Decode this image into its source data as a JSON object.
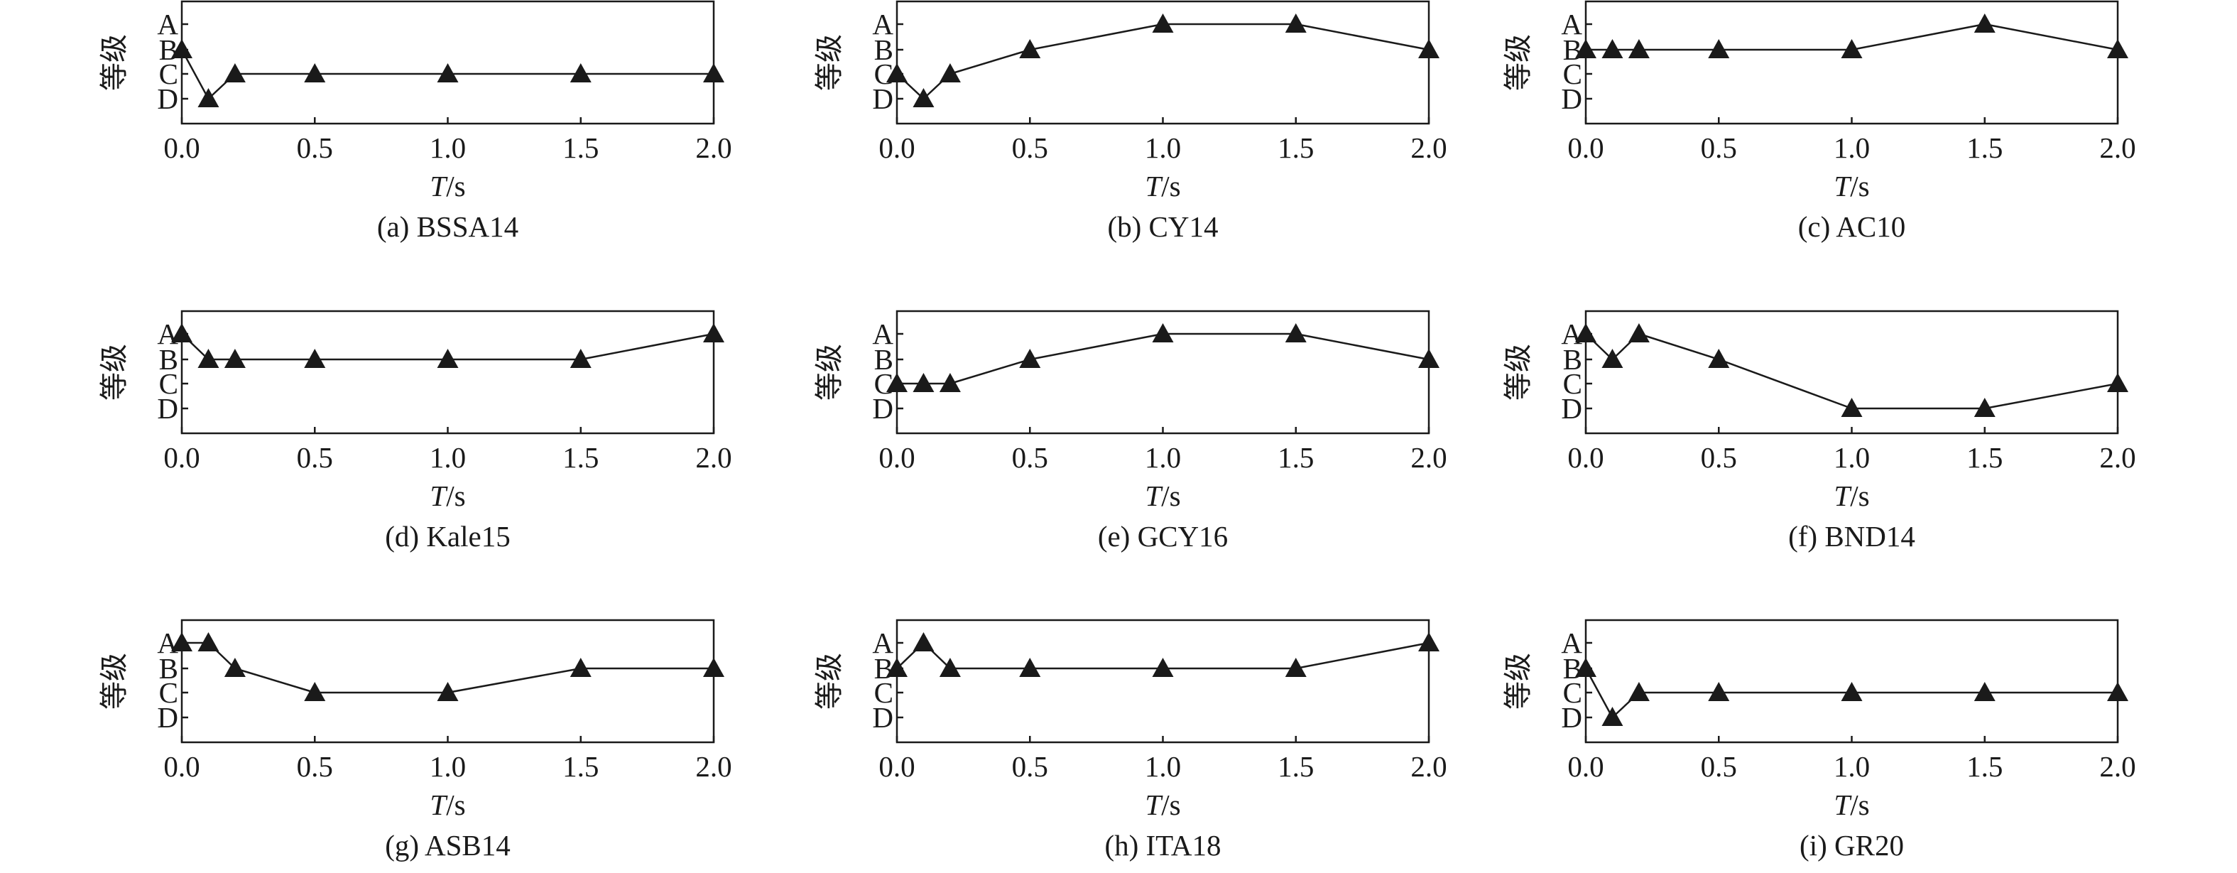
{
  "figure": {
    "panels": [
      {
        "caption": "(a) BSSA14",
        "ylabel": "等级",
        "xlabel_var": "T",
        "xlabel_unit": "/s"
      },
      {
        "caption": "(b) CY14",
        "ylabel": "等级",
        "xlabel_var": "T",
        "xlabel_unit": "/s"
      },
      {
        "caption": "(c) AC10",
        "ylabel": "等级",
        "xlabel_var": "T",
        "xlabel_unit": "/s"
      },
      {
        "caption": "(d) Kale15",
        "ylabel": "等级",
        "xlabel_var": "T",
        "xlabel_unit": "/s"
      },
      {
        "caption": "(e) GCY16",
        "ylabel": "等级",
        "xlabel_var": "T",
        "xlabel_unit": "/s"
      },
      {
        "caption": "(f) BND14",
        "ylabel": "等级",
        "xlabel_var": "T",
        "xlabel_unit": "/s"
      },
      {
        "caption": "(g) ASB14",
        "ylabel": "等级",
        "xlabel_var": "T",
        "xlabel_unit": "/s"
      },
      {
        "caption": "(h) ITA18",
        "ylabel": "等级",
        "xlabel_var": "T",
        "xlabel_unit": "/s"
      },
      {
        "caption": "(i) GR20",
        "ylabel": "等级",
        "xlabel_var": "T",
        "xlabel_unit": "/s"
      }
    ]
  },
  "chart_data": [
    {
      "type": "line",
      "title": "(a) BSSA14",
      "xlabel": "T/s",
      "ylabel": "等级",
      "x": [
        0.0,
        0.1,
        0.2,
        0.5,
        1.0,
        1.5,
        2.0
      ],
      "y": [
        "B",
        "D",
        "C",
        "C",
        "C",
        "C",
        "C"
      ],
      "xticks": [
        "0.0",
        "0.5",
        "1.0",
        "1.5",
        "2.0"
      ],
      "yticks": [
        "A",
        "B",
        "C",
        "D"
      ],
      "xlim": [
        0,
        2
      ],
      "marker": "triangle",
      "line_color": "#1a1a1a"
    },
    {
      "type": "line",
      "title": "(b) CY14",
      "xlabel": "T/s",
      "ylabel": "等级",
      "x": [
        0.0,
        0.1,
        0.2,
        0.5,
        1.0,
        1.5,
        2.0
      ],
      "y": [
        "C",
        "D",
        "C",
        "B",
        "A",
        "A",
        "B"
      ],
      "xticks": [
        "0.0",
        "0.5",
        "1.0",
        "1.5",
        "2.0"
      ],
      "yticks": [
        "A",
        "B",
        "C",
        "D"
      ],
      "xlim": [
        0,
        2
      ],
      "marker": "triangle",
      "line_color": "#1a1a1a"
    },
    {
      "type": "line",
      "title": "(c) AC10",
      "xlabel": "T/s",
      "ylabel": "等级",
      "x": [
        0.0,
        0.1,
        0.2,
        0.5,
        1.0,
        1.5,
        2.0
      ],
      "y": [
        "B",
        "B",
        "B",
        "B",
        "B",
        "A",
        "B"
      ],
      "xticks": [
        "0.0",
        "0.5",
        "1.0",
        "1.5",
        "2.0"
      ],
      "yticks": [
        "A",
        "B",
        "C",
        "D"
      ],
      "xlim": [
        0,
        2
      ],
      "marker": "triangle",
      "line_color": "#1a1a1a"
    },
    {
      "type": "line",
      "title": "(d) Kale15",
      "xlabel": "T/s",
      "ylabel": "等级",
      "x": [
        0.0,
        0.1,
        0.2,
        0.5,
        1.0,
        1.5,
        2.0
      ],
      "y": [
        "A",
        "B",
        "B",
        "B",
        "B",
        "B",
        "A"
      ],
      "xticks": [
        "0.0",
        "0.5",
        "1.0",
        "1.5",
        "2.0"
      ],
      "yticks": [
        "A",
        "B",
        "C",
        "D"
      ],
      "xlim": [
        0,
        2
      ],
      "marker": "triangle",
      "line_color": "#1a1a1a"
    },
    {
      "type": "line",
      "title": "(e) GCY16",
      "xlabel": "T/s",
      "ylabel": "等级",
      "x": [
        0.0,
        0.1,
        0.2,
        0.5,
        1.0,
        1.5,
        2.0
      ],
      "y": [
        "C",
        "C",
        "C",
        "B",
        "A",
        "A",
        "B"
      ],
      "xticks": [
        "0.0",
        "0.5",
        "1.0",
        "1.5",
        "2.0"
      ],
      "yticks": [
        "A",
        "B",
        "C",
        "D"
      ],
      "xlim": [
        0,
        2
      ],
      "marker": "triangle",
      "line_color": "#1a1a1a"
    },
    {
      "type": "line",
      "title": "(f) BND14",
      "xlabel": "T/s",
      "ylabel": "等级",
      "x": [
        0.0,
        0.1,
        0.2,
        0.5,
        1.0,
        1.5,
        2.0
      ],
      "y": [
        "A",
        "B",
        "A",
        "B",
        "D",
        "D",
        "C"
      ],
      "xticks": [
        "0.0",
        "0.5",
        "1.0",
        "1.5",
        "2.0"
      ],
      "yticks": [
        "A",
        "B",
        "C",
        "D"
      ],
      "xlim": [
        0,
        2
      ],
      "marker": "triangle",
      "line_color": "#1a1a1a"
    },
    {
      "type": "line",
      "title": "(g) ASB14",
      "xlabel": "T/s",
      "ylabel": "等级",
      "x": [
        0.0,
        0.1,
        0.2,
        0.5,
        1.0,
        1.5,
        2.0
      ],
      "y": [
        "A",
        "A",
        "B",
        "C",
        "C",
        "B",
        "B"
      ],
      "xticks": [
        "0.0",
        "0.5",
        "1.0",
        "1.5",
        "2.0"
      ],
      "yticks": [
        "A",
        "B",
        "C",
        "D"
      ],
      "xlim": [
        0,
        2
      ],
      "marker": "triangle",
      "line_color": "#1a1a1a"
    },
    {
      "type": "line",
      "title": "(h) ITA18",
      "xlabel": "T/s",
      "ylabel": "等级",
      "x": [
        0.0,
        0.1,
        0.2,
        0.5,
        1.0,
        1.5,
        2.0
      ],
      "y": [
        "B",
        "A",
        "B",
        "B",
        "B",
        "B",
        "A"
      ],
      "xticks": [
        "0.0",
        "0.5",
        "1.0",
        "1.5",
        "2.0"
      ],
      "yticks": [
        "A",
        "B",
        "C",
        "D"
      ],
      "xlim": [
        0,
        2
      ],
      "marker": "triangle",
      "line_color": "#1a1a1a"
    },
    {
      "type": "line",
      "title": "(i) GR20",
      "xlabel": "T/s",
      "ylabel": "等级",
      "x": [
        0.0,
        0.1,
        0.2,
        0.5,
        1.0,
        1.5,
        2.0
      ],
      "y": [
        "B",
        "D",
        "C",
        "C",
        "C",
        "C",
        "C"
      ],
      "xticks": [
        "0.0",
        "0.5",
        "1.0",
        "1.5",
        "2.0"
      ],
      "yticks": [
        "A",
        "B",
        "C",
        "D"
      ],
      "xlim": [
        0,
        2
      ],
      "marker": "triangle",
      "line_color": "#1a1a1a"
    }
  ]
}
